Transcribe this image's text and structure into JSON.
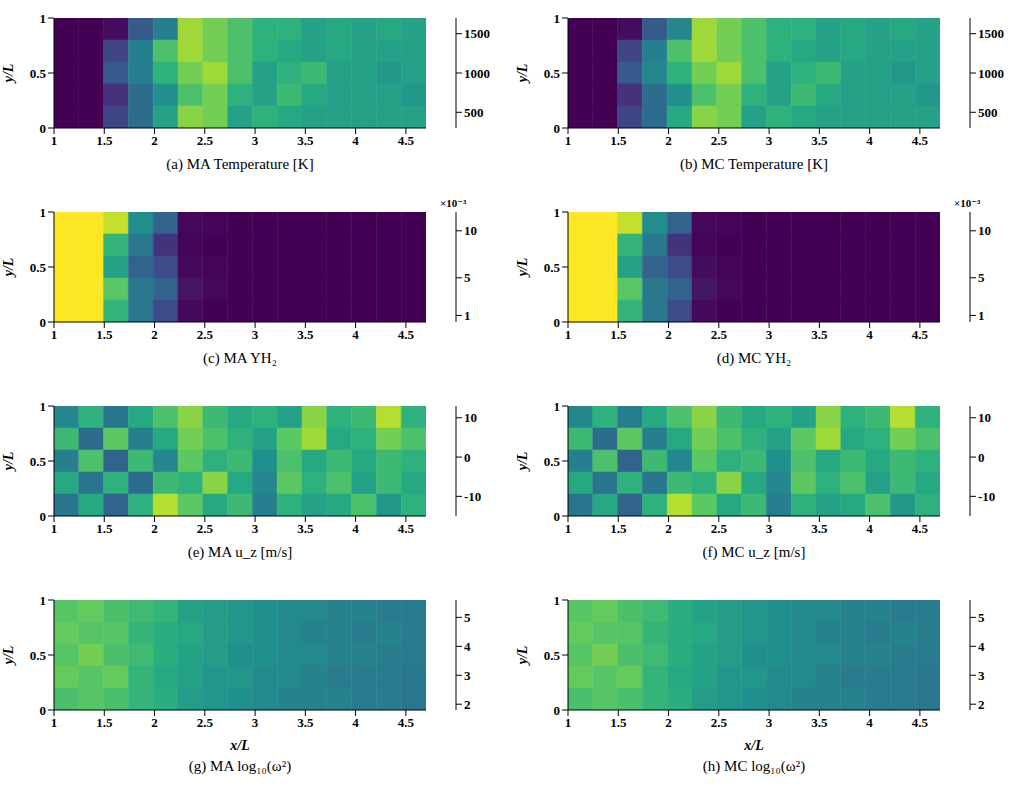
{
  "chart_data": [
    {
      "type": "heatmap",
      "title": "(a) MA Temperature [K]",
      "y_label": "y/L",
      "xlim": [
        1,
        4.7
      ],
      "xticks": [
        1,
        1.5,
        2,
        2.5,
        3,
        3.5,
        4,
        4.5
      ],
      "ylim": [
        0,
        1
      ],
      "yticks": [
        0,
        0.5,
        1
      ],
      "cells": [
        [
          300,
          300,
          350,
          700,
          900,
          1500,
          1400,
          1300,
          1200,
          1200,
          1100,
          1150,
          1100,
          1150,
          1100
        ],
        [
          300,
          300,
          600,
          900,
          1300,
          1500,
          1400,
          1300,
          1200,
          1150,
          1100,
          1150,
          1100,
          1100,
          1100
        ],
        [
          300,
          300,
          700,
          900,
          1200,
          1400,
          1500,
          1300,
          1100,
          1200,
          1250,
          1100,
          1100,
          1050,
          1100
        ],
        [
          300,
          300,
          500,
          800,
          1000,
          1300,
          1400,
          1200,
          1100,
          1250,
          1150,
          1100,
          1100,
          1100,
          1050
        ],
        [
          300,
          300,
          600,
          800,
          1100,
          1450,
          1400,
          1100,
          1200,
          1150,
          1100,
          1100,
          1100,
          1100,
          1100
        ]
      ],
      "colorbar_range": [
        300,
        1700
      ],
      "colorbar_ticks": [
        500,
        1000,
        1500
      ]
    },
    {
      "type": "heatmap",
      "title": "(b) MC Temperature [K]",
      "y_label": "y/L",
      "xlim": [
        1,
        4.7
      ],
      "xticks": [
        1,
        1.5,
        2,
        2.5,
        3,
        3.5,
        4,
        4.5
      ],
      "ylim": [
        0,
        1
      ],
      "yticks": [
        0,
        0.5,
        1
      ],
      "cells": [
        [
          300,
          300,
          350,
          700,
          950,
          1500,
          1400,
          1300,
          1200,
          1200,
          1100,
          1150,
          1100,
          1150,
          1100
        ],
        [
          300,
          300,
          600,
          900,
          1300,
          1500,
          1400,
          1300,
          1200,
          1150,
          1100,
          1150,
          1100,
          1100,
          1100
        ],
        [
          300,
          300,
          700,
          950,
          1200,
          1400,
          1500,
          1300,
          1100,
          1200,
          1250,
          1100,
          1100,
          1050,
          1100
        ],
        [
          300,
          300,
          500,
          800,
          1000,
          1300,
          1400,
          1200,
          1100,
          1250,
          1150,
          1100,
          1100,
          1100,
          1050
        ],
        [
          300,
          300,
          600,
          800,
          1150,
          1450,
          1400,
          1100,
          1200,
          1150,
          1100,
          1100,
          1100,
          1100,
          1100
        ]
      ],
      "colorbar_range": [
        300,
        1700
      ],
      "colorbar_ticks": [
        500,
        1000,
        1500
      ]
    },
    {
      "type": "heatmap",
      "title": "(c) MA YH₂",
      "y_label": "y/L",
      "xlim": [
        1,
        4.7
      ],
      "xticks": [
        1,
        1.5,
        2,
        2.5,
        3,
        3.5,
        4,
        4.5
      ],
      "ylim": [
        0,
        1
      ],
      "yticks": [
        0,
        0.5,
        1
      ],
      "cells": [
        [
          0.012,
          0.012,
          0.011,
          0.006,
          0.004,
          0.0005,
          0.0004,
          0.0003,
          0.0003,
          0.0003,
          0.0003,
          0.0003,
          0.0003,
          0.0003,
          0.0003
        ],
        [
          0.012,
          0.012,
          0.008,
          0.005,
          0.002,
          0.0004,
          0.0003,
          0.0003,
          0.0003,
          0.0003,
          0.0003,
          0.0003,
          0.0003,
          0.0003,
          0.0003
        ],
        [
          0.012,
          0.012,
          0.007,
          0.004,
          0.003,
          0.0006,
          0.0004,
          0.0003,
          0.0003,
          0.0003,
          0.0003,
          0.0003,
          0.0003,
          0.0003,
          0.0003
        ],
        [
          0.012,
          0.012,
          0.009,
          0.005,
          0.004,
          0.001,
          0.0005,
          0.0003,
          0.0003,
          0.0003,
          0.0003,
          0.0003,
          0.0003,
          0.0003,
          0.0003
        ],
        [
          0.012,
          0.012,
          0.008,
          0.005,
          0.003,
          0.0006,
          0.0003,
          0.0003,
          0.0003,
          0.0003,
          0.0003,
          0.0003,
          0.0003,
          0.0003,
          0.0003
        ]
      ],
      "colorbar_range": [
        0.0003,
        0.012
      ],
      "colorbar_ticks": [
        {
          "value": 0.001,
          "label": "1"
        },
        {
          "value": 0.005,
          "label": "5"
        },
        {
          "value": 0.01,
          "label": "10"
        }
      ],
      "colorbar_label": "×10⁻³"
    },
    {
      "type": "heatmap",
      "title": "(d) MC YH₂",
      "y_label": "y/L",
      "xlim": [
        1,
        4.7
      ],
      "xticks": [
        1,
        1.5,
        2,
        2.5,
        3,
        3.5,
        4,
        4.5
      ],
      "ylim": [
        0,
        1
      ],
      "yticks": [
        0,
        0.5,
        1
      ],
      "cells": [
        [
          0.012,
          0.012,
          0.011,
          0.006,
          0.004,
          0.0005,
          0.0004,
          0.0003,
          0.0003,
          0.0003,
          0.0003,
          0.0003,
          0.0003,
          0.0003,
          0.0003
        ],
        [
          0.012,
          0.012,
          0.008,
          0.005,
          0.002,
          0.0004,
          0.0003,
          0.0003,
          0.0003,
          0.0003,
          0.0003,
          0.0003,
          0.0003,
          0.0003,
          0.0003
        ],
        [
          0.012,
          0.012,
          0.007,
          0.004,
          0.003,
          0.0007,
          0.0004,
          0.0003,
          0.0003,
          0.0003,
          0.0003,
          0.0003,
          0.0003,
          0.0003,
          0.0003
        ],
        [
          0.012,
          0.012,
          0.009,
          0.005,
          0.004,
          0.001,
          0.0005,
          0.0003,
          0.0003,
          0.0003,
          0.0003,
          0.0003,
          0.0003,
          0.0003,
          0.0003
        ],
        [
          0.012,
          0.012,
          0.008,
          0.005,
          0.003,
          0.0006,
          0.0003,
          0.0003,
          0.0003,
          0.0003,
          0.0003,
          0.0003,
          0.0003,
          0.0003,
          0.0003
        ]
      ],
      "colorbar_range": [
        0.0003,
        0.012
      ],
      "colorbar_ticks": [
        {
          "value": 0.001,
          "label": "1"
        },
        {
          "value": 0.005,
          "label": "5"
        },
        {
          "value": 0.01,
          "label": "10"
        }
      ],
      "colorbar_label": "×10⁻³"
    },
    {
      "type": "heatmap",
      "title": "(e) MA u_z [m/s]",
      "y_label": "y/L",
      "xlim": [
        1,
        4.7
      ],
      "xticks": [
        1,
        1.5,
        2,
        2.5,
        3,
        3.5,
        4,
        4.5
      ],
      "ylim": [
        0,
        1
      ],
      "yticks": [
        0,
        0.5,
        1
      ],
      "cells": [
        [
          -2,
          3,
          -4,
          2,
          5,
          8,
          4,
          2,
          3,
          1,
          8,
          3,
          4,
          10,
          3
        ],
        [
          4,
          -5,
          6,
          -3,
          2,
          7,
          5,
          3,
          1,
          6,
          9,
          2,
          3,
          7,
          5
        ],
        [
          -3,
          5,
          -6,
          4,
          -2,
          6,
          3,
          4,
          -1,
          5,
          2,
          4,
          2,
          4,
          3
        ],
        [
          2,
          -4,
          3,
          -5,
          4,
          3,
          8,
          2,
          -2,
          6,
          3,
          5,
          1,
          4,
          2
        ],
        [
          -4,
          2,
          -6,
          3,
          10,
          6,
          2,
          4,
          -3,
          3,
          1,
          2,
          5,
          0,
          3
        ]
      ],
      "colorbar_range": [
        -15,
        13
      ],
      "colorbar_ticks": [
        -10,
        0,
        10
      ]
    },
    {
      "type": "heatmap",
      "title": "(f) MC u_z [m/s]",
      "y_label": "y/L",
      "xlim": [
        1,
        4.7
      ],
      "xticks": [
        1,
        1.5,
        2,
        2.5,
        3,
        3.5,
        4,
        4.5
      ],
      "ylim": [
        0,
        1
      ],
      "yticks": [
        0,
        0.5,
        1
      ],
      "cells": [
        [
          -2,
          3,
          -3,
          2,
          5,
          8,
          4,
          2,
          3,
          1,
          8,
          3,
          4,
          10,
          3
        ],
        [
          4,
          -5,
          6,
          -3,
          2,
          7,
          5,
          3,
          1,
          6,
          9,
          2,
          3,
          7,
          5
        ],
        [
          -3,
          5,
          -6,
          4,
          -2,
          6,
          3,
          4,
          -1,
          5,
          2,
          4,
          2,
          4,
          3
        ],
        [
          2,
          -4,
          3,
          -4,
          4,
          3,
          8,
          2,
          -2,
          6,
          3,
          5,
          1,
          4,
          2
        ],
        [
          -4,
          2,
          -6,
          3,
          10,
          6,
          2,
          4,
          -3,
          3,
          1,
          2,
          5,
          0,
          3
        ]
      ],
      "colorbar_range": [
        -15,
        13
      ],
      "colorbar_ticks": [
        -10,
        0,
        10
      ]
    },
    {
      "type": "heatmap",
      "title": "(g) MA log₁₀(ω²)",
      "x_label": "x/L",
      "y_label": "y/L",
      "xlim": [
        1,
        4.7
      ],
      "xticks": [
        1,
        1.5,
        2,
        2.5,
        3,
        3.5,
        4,
        4.5
      ],
      "ylim": [
        0,
        1
      ],
      "yticks": [
        0,
        0.5,
        1
      ],
      "cells": [
        [
          4.6,
          4.7,
          4.5,
          4.4,
          4.3,
          4.0,
          3.9,
          3.8,
          3.7,
          3.6,
          3.6,
          3.5,
          3.5,
          3.4,
          3.4
        ],
        [
          4.7,
          4.6,
          4.6,
          4.3,
          4.2,
          4.1,
          3.9,
          3.8,
          3.7,
          3.6,
          3.5,
          3.5,
          3.4,
          3.5,
          3.4
        ],
        [
          4.6,
          4.8,
          4.5,
          4.4,
          4.2,
          4.0,
          3.9,
          3.7,
          3.7,
          3.6,
          3.6,
          3.5,
          3.5,
          3.4,
          3.4
        ],
        [
          4.7,
          4.6,
          4.7,
          4.3,
          4.1,
          4.0,
          3.8,
          3.8,
          3.6,
          3.6,
          3.5,
          3.4,
          3.4,
          3.4,
          3.3
        ],
        [
          4.5,
          4.6,
          4.5,
          4.3,
          4.2,
          3.9,
          3.8,
          3.7,
          3.6,
          3.5,
          3.5,
          3.5,
          3.4,
          3.4,
          3.3
        ]
      ],
      "colorbar_range": [
        1.8,
        5.6
      ],
      "colorbar_ticks": [
        2,
        3,
        4,
        5
      ]
    },
    {
      "type": "heatmap",
      "title": "(h) MC log₁₀(ω²)",
      "x_label": "x/L",
      "y_label": "y/L",
      "xlim": [
        1,
        4.7
      ],
      "xticks": [
        1,
        1.5,
        2,
        2.5,
        3,
        3.5,
        4,
        4.5
      ],
      "ylim": [
        0,
        1
      ],
      "yticks": [
        0,
        0.5,
        1
      ],
      "cells": [
        [
          4.6,
          4.7,
          4.5,
          4.4,
          4.2,
          4.0,
          3.9,
          3.8,
          3.7,
          3.6,
          3.6,
          3.5,
          3.5,
          3.4,
          3.4
        ],
        [
          4.7,
          4.6,
          4.6,
          4.3,
          4.2,
          4.1,
          3.9,
          3.8,
          3.7,
          3.6,
          3.5,
          3.5,
          3.4,
          3.5,
          3.4
        ],
        [
          4.6,
          4.8,
          4.5,
          4.4,
          4.2,
          4.0,
          3.9,
          3.7,
          3.7,
          3.6,
          3.6,
          3.5,
          3.5,
          3.4,
          3.4
        ],
        [
          4.7,
          4.6,
          4.7,
          4.3,
          4.1,
          4.0,
          3.8,
          3.8,
          3.6,
          3.6,
          3.5,
          3.4,
          3.4,
          3.4,
          3.3
        ],
        [
          4.5,
          4.6,
          4.5,
          4.3,
          4.2,
          3.9,
          3.8,
          3.7,
          3.6,
          3.5,
          3.5,
          3.5,
          3.4,
          3.4,
          3.3
        ]
      ],
      "colorbar_range": [
        1.8,
        5.6
      ],
      "colorbar_ticks": [
        2,
        3,
        4,
        5
      ]
    }
  ]
}
